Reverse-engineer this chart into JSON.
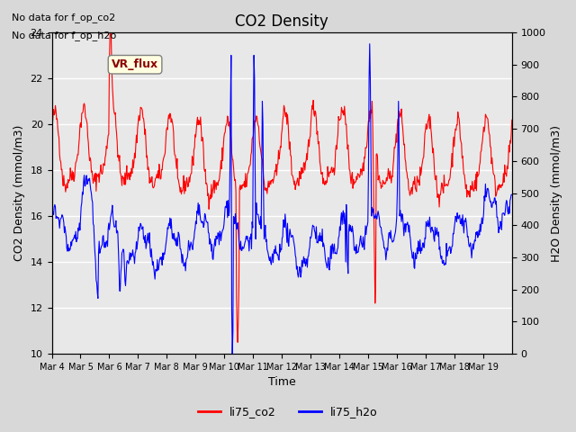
{
  "title": "CO2 Density",
  "xlabel": "Time",
  "ylabel_left": "CO2 Density (mmol/m3)",
  "ylabel_right": "H2O Density (mmol/m3)",
  "annotation_lines": [
    "No data for f_op_co2",
    "No data for f_op_h2o"
  ],
  "vr_flux_label": "VR_flux",
  "legend_labels": [
    "li75_co2",
    "li75_h2o"
  ],
  "ylim_left": [
    10,
    24
  ],
  "ylim_right": [
    0,
    1000
  ],
  "yticks_left": [
    10,
    12,
    14,
    16,
    18,
    20,
    22,
    24
  ],
  "yticks_right": [
    0,
    100,
    200,
    300,
    400,
    500,
    600,
    700,
    800,
    900,
    1000
  ],
  "bg_color": "#d8d8d8",
  "plot_bg_color": "#e8e8e8",
  "grid_color": "white",
  "xtick_labels": [
    "Mar 4",
    "Mar 5",
    "Mar 6",
    "Mar 7",
    "Mar 8",
    "Mar 9",
    "Mar 10",
    "Mar 11",
    "Mar 12",
    "Mar 13",
    "Mar 14",
    "Mar 15",
    "Mar 16",
    "Mar 17",
    "Mar 18",
    "Mar 19"
  ]
}
